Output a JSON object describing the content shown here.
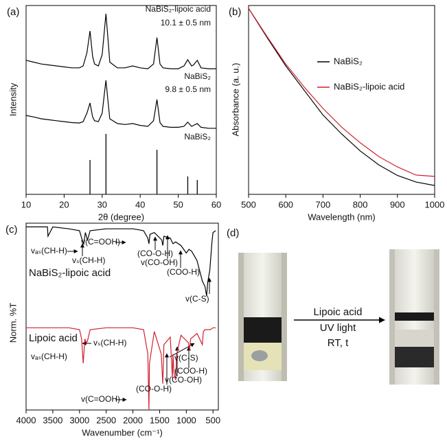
{
  "chart_data": [
    {
      "type": "line",
      "label": "(a)",
      "xlabel": "2θ (degree)",
      "ylabel": "Intensity",
      "xlim": [
        10,
        60
      ],
      "xticks": [
        10,
        20,
        30,
        40,
        50,
        60
      ],
      "ylim": [
        0,
        10
      ],
      "annotations": [
        "NaBiS₂-lipoic acid",
        "10.1 ± 0.5 nm",
        "NaBiS₂",
        "9.8 ± 0.5 nm",
        "NaBiS₂"
      ],
      "series": [
        {
          "color": "#000000",
          "x": [
            10,
            12,
            14,
            16,
            18,
            20,
            22,
            24,
            25,
            26,
            26.8,
            27.5,
            28,
            29,
            30,
            30.5,
            31,
            31.5,
            32,
            34,
            36,
            38,
            40,
            42,
            43.5,
            44.4,
            45.2,
            46,
            48,
            50,
            51.5,
            52.5,
            53.5,
            54,
            55,
            56,
            58,
            60
          ],
          "values": [
            7.1,
            7.0,
            6.9,
            6.85,
            6.8,
            6.75,
            6.7,
            6.7,
            6.8,
            7.5,
            8.65,
            7.3,
            6.9,
            6.8,
            7.4,
            8.5,
            9.56,
            8.3,
            7.0,
            6.7,
            6.7,
            6.8,
            6.7,
            6.65,
            6.9,
            8.3,
            6.9,
            6.7,
            6.65,
            6.65,
            6.8,
            7.13,
            6.8,
            6.85,
            7.1,
            6.7,
            6.65,
            6.65
          ]
        },
        {
          "color": "#000000",
          "x": [
            10,
            12,
            14,
            16,
            18,
            20,
            22,
            24,
            25,
            26,
            26.8,
            27.5,
            28,
            29,
            30,
            30.5,
            31,
            31.5,
            32,
            34,
            36,
            38,
            40,
            42,
            43.5,
            44.4,
            45.2,
            46,
            48,
            50,
            51.5,
            52.5,
            53.5,
            54,
            55,
            56,
            58,
            60
          ],
          "values": [
            4.18,
            4.1,
            4.0,
            3.95,
            3.9,
            3.85,
            3.8,
            3.78,
            3.85,
            4.3,
            4.84,
            4.1,
            3.9,
            3.85,
            4.3,
            5.2,
            6.04,
            5.0,
            4.0,
            3.75,
            3.7,
            3.75,
            3.65,
            3.6,
            3.9,
            5.02,
            3.8,
            3.6,
            3.55,
            3.55,
            3.6,
            3.82,
            3.6,
            3.65,
            3.75,
            3.55,
            3.5,
            3.5
          ]
        },
        {
          "color": "#000000",
          "style": "stick",
          "x": [
            26.8,
            31,
            44.4,
            52.5,
            55
          ],
          "values": [
            1.82,
            3.2,
            2.36,
            0.95,
            0.76
          ]
        }
      ]
    },
    {
      "type": "line",
      "label": "(b)",
      "xlabel": "Wavelength (nm)",
      "ylabel": "Absorbance (a. u.)",
      "xlim": [
        500,
        1000
      ],
      "xticks": [
        500,
        600,
        700,
        800,
        900,
        1000
      ],
      "ylim": [
        0,
        1
      ],
      "legend": "upper right",
      "series": [
        {
          "name": "NaBiS₂",
          "color": "#000000",
          "x": [
            500,
            550,
            600,
            650,
            700,
            750,
            800,
            850,
            900,
            950,
            1000
          ],
          "values": [
            0.985,
            0.83,
            0.68,
            0.55,
            0.42,
            0.32,
            0.23,
            0.156,
            0.1,
            0.065,
            0.047
          ]
        },
        {
          "name": "NaBiS₂-lipoic acid",
          "color": "#d0202e",
          "x": [
            500,
            550,
            600,
            650,
            700,
            750,
            800,
            850,
            900,
            950,
            1000
          ],
          "values": [
            0.985,
            0.835,
            0.69,
            0.567,
            0.455,
            0.356,
            0.273,
            0.2,
            0.145,
            0.102,
            0.095
          ]
        }
      ]
    },
    {
      "type": "line",
      "label": "(c)",
      "xlabel": "Wavenumber (cm⁻¹)",
      "ylabel": "Norm. %T",
      "xlim": [
        4000,
        400
      ],
      "xticks": [
        4000,
        3500,
        3000,
        2500,
        2000,
        1500,
        1000,
        500
      ],
      "ylim": [
        0,
        10
      ],
      "annotations": [
        "vₐₛ(CH-H)",
        "vₛ(CH-H)",
        "v(C=OOH)",
        "(CO-O-H)",
        "v(CO-OH)",
        "(COO-H)",
        "NaBiS₂-lipoic acid",
        "v(C-S)",
        "Lipoic acid",
        "vₛ(CH-H)",
        "vₐₛ(CH-H)",
        "v(C-S)",
        "(COO-H)",
        "v(CO-OH)",
        "(CO-O-H)",
        "v(C=OOH)"
      ],
      "series": [
        {
          "color": "#000000",
          "x": [
            4000,
            3800,
            3600,
            3590,
            3500,
            3200,
            3000,
            2960,
            2920,
            2890,
            2850,
            2800,
            2500,
            2000,
            1800,
            1720,
            1700,
            1680,
            1600,
            1460,
            1440,
            1420,
            1300,
            1250,
            1200,
            1100,
            1000,
            950,
            900,
            800,
            700,
            650,
            620,
            600,
            560,
            520,
            500,
            450
          ],
          "values": [
            9.8,
            9.8,
            9.8,
            9.3,
            9.8,
            9.7,
            9.6,
            9.2,
            8.9,
            9.5,
            9.1,
            9.6,
            9.7,
            9.7,
            9.6,
            9.2,
            8.9,
            9.4,
            9.5,
            9.1,
            8.8,
            9.3,
            9.2,
            8.9,
            9.0,
            8.8,
            8.4,
            8.6,
            8.5,
            8.0,
            6.9,
            6.6,
            6.1,
            6.8,
            7.5,
            9.0,
            9.5,
            9.6
          ]
        },
        {
          "color": "#d0202e",
          "x": [
            4000,
            3500,
            3200,
            3000,
            2960,
            2930,
            2900,
            2870,
            2850,
            2800,
            2500,
            2000,
            1800,
            1720,
            1700,
            1690,
            1600,
            1470,
            1440,
            1420,
            1300,
            1260,
            1250,
            1230,
            1200,
            1180,
            1100,
            960,
            940,
            920,
            800,
            700,
            680,
            650,
            550,
            500,
            450
          ],
          "values": [
            4.4,
            4.4,
            4.4,
            4.3,
            3.8,
            2.5,
            3.8,
            3.6,
            3.7,
            4.3,
            4.4,
            4.4,
            4.3,
            3.0,
            0.0,
            2.5,
            4.2,
            3.0,
            1.4,
            3.5,
            3.9,
            1.7,
            3.0,
            2.0,
            1.6,
            3.0,
            4.0,
            3.6,
            3.2,
            3.8,
            4.1,
            3.5,
            4.2,
            4.3,
            4.3,
            4.4,
            4.4
          ]
        }
      ]
    }
  ],
  "scheme": {
    "label": "(d)",
    "arrow_text": [
      "Lipoic acid",
      "UV light",
      "RT, t"
    ]
  }
}
